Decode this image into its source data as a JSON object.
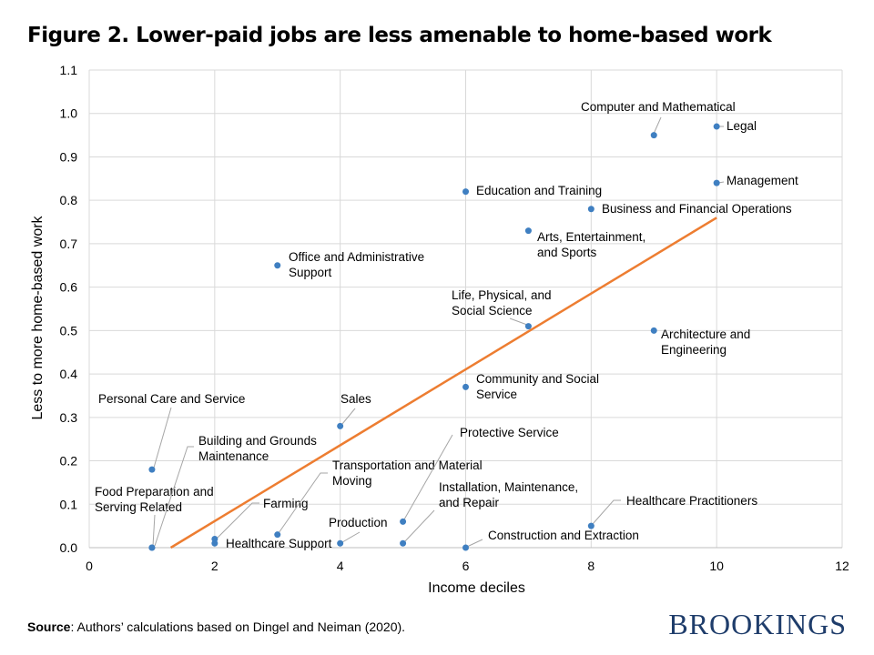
{
  "title": "Figure 2. Lower-paid jobs are less amenable to home-based work",
  "source": {
    "label": "Source",
    "text": ": Authors’ calculations based on Dingel and Neiman (2020)."
  },
  "logo": "BROOKINGS",
  "colors": {
    "points": "#3f7fc1",
    "trendline": "#ed7d31",
    "grid": "#d9d9d9",
    "leader": "#a6a6a6"
  },
  "chart_data": {
    "type": "scatter",
    "xlabel": "Income deciles",
    "ylabel": "Less to more home-based work",
    "xlim": [
      0,
      12
    ],
    "ylim": [
      0,
      1.1
    ],
    "xticks": [
      "0",
      "2",
      "4",
      "6",
      "8",
      "10",
      "12"
    ],
    "yticks": [
      "0.0",
      "0.1",
      "0.2",
      "0.3",
      "0.4",
      "0.5",
      "0.6",
      "0.7",
      "0.8",
      "0.9",
      "1.0",
      "1.1"
    ],
    "grid": true,
    "points": [
      {
        "label": [
          "Food Preparation and",
          "Serving Related"
        ],
        "x": 1,
        "y": 0.0
      },
      {
        "label": [
          "Personal Care and Service"
        ],
        "x": 1,
        "y": 0.18
      },
      {
        "label": [
          "Building and Grounds",
          "Maintenance"
        ],
        "x": 1,
        "y": 0.0
      },
      {
        "label": [
          "Farming"
        ],
        "x": 2,
        "y": 0.02
      },
      {
        "label": [
          "Healthcare Support"
        ],
        "x": 2,
        "y": 0.01
      },
      {
        "label": [
          "Transportation and Material",
          "Moving"
        ],
        "x": 3,
        "y": 0.03
      },
      {
        "label": [
          "Office and Administrative",
          "Support"
        ],
        "x": 3,
        "y": 0.65
      },
      {
        "label": [
          "Sales"
        ],
        "x": 4,
        "y": 0.28
      },
      {
        "label": [
          "Production"
        ],
        "x": 4,
        "y": 0.01
      },
      {
        "label": [
          "Protective Service"
        ],
        "x": 5,
        "y": 0.06
      },
      {
        "label": [
          "Installation, Maintenance,",
          "and Repair"
        ],
        "x": 5,
        "y": 0.01
      },
      {
        "label": [
          "Education and Training"
        ],
        "x": 6,
        "y": 0.82
      },
      {
        "label": [
          "Community and Social",
          "Service"
        ],
        "x": 6,
        "y": 0.37
      },
      {
        "label": [
          "Construction and Extraction"
        ],
        "x": 6,
        "y": 0.0
      },
      {
        "label": [
          "Arts, Entertainment,",
          "and Sports"
        ],
        "x": 7,
        "y": 0.73
      },
      {
        "label": [
          "Life, Physical, and",
          "Social Science"
        ],
        "x": 7,
        "y": 0.51
      },
      {
        "label": [
          "Business and Financial Operations"
        ],
        "x": 8,
        "y": 0.78
      },
      {
        "label": [
          "Healthcare Practitioners"
        ],
        "x": 8,
        "y": 0.05
      },
      {
        "label": [
          "Computer and Mathematical"
        ],
        "x": 9,
        "y": 0.95
      },
      {
        "label": [
          "Architecture and",
          "Engineering"
        ],
        "x": 9,
        "y": 0.5
      },
      {
        "label": [
          "Legal"
        ],
        "x": 10,
        "y": 0.97
      },
      {
        "label": [
          "Management"
        ],
        "x": 10,
        "y": 0.84
      }
    ],
    "trendline": {
      "type": "linear",
      "x": [
        1.3,
        10
      ],
      "y": [
        0.0,
        0.76
      ]
    }
  }
}
